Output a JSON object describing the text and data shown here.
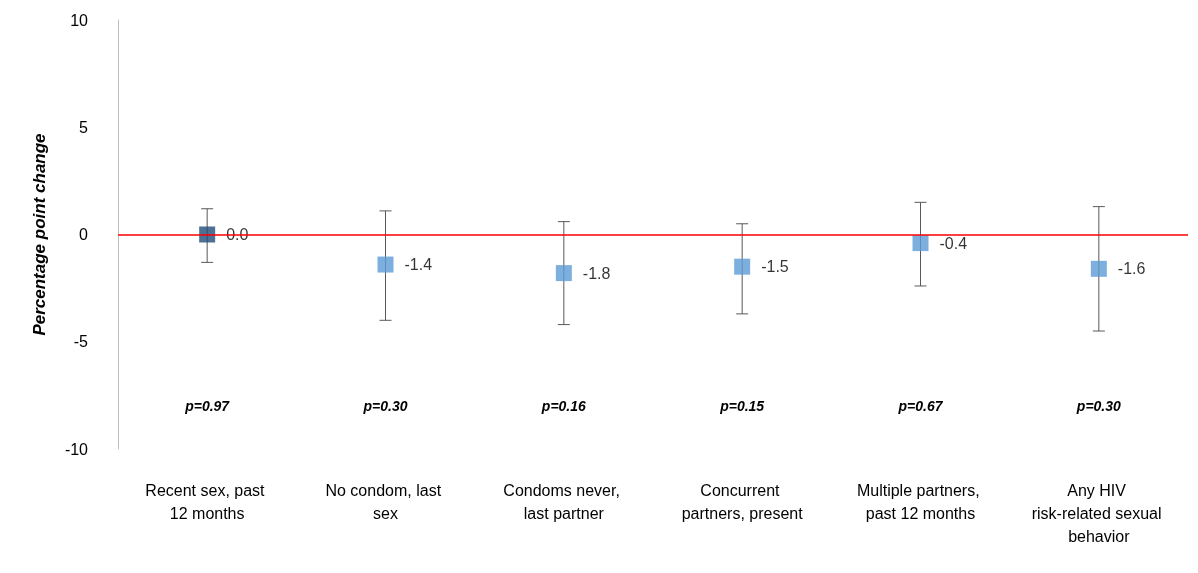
{
  "chart_data": {
    "type": "scatter",
    "ylabel": "Percentage point change",
    "categories": [
      "Recent sex, past 12 months",
      "No condom, last sex",
      "Condoms never, last partner",
      "Concurrent partners, present",
      "Multiple partners, past 12 months",
      "Any HIV risk-related sexual behavior"
    ],
    "values": [
      0.0,
      -1.4,
      -1.8,
      -1.5,
      -0.4,
      -1.6
    ],
    "colors": [
      "#1f4e79",
      "#5b9bd5",
      "#5b9bd5",
      "#5b9bd5",
      "#5b9bd5",
      "#5b9bd5"
    ],
    "errors": [
      [
        -1.3,
        1.2
      ],
      [
        -4.0,
        1.1
      ],
      [
        -4.2,
        0.6
      ],
      [
        -3.7,
        0.5
      ],
      [
        -2.4,
        1.5
      ],
      [
        -4.5,
        1.3
      ]
    ],
    "value_labels": [
      "0.0",
      "-1.4",
      "-1.8",
      "-1.5",
      "-0.4",
      "-1.6"
    ],
    "marker": "square",
    "ylim": [
      -10,
      10
    ],
    "yticks": [
      -10,
      -5,
      0,
      5,
      10
    ],
    "grid": false,
    "ref_lines": [
      {
        "axis": "y",
        "value": 0,
        "color": "#ff0000"
      }
    ],
    "annotations": [
      "p=0.97",
      "p=0.30",
      "p=0.16",
      "p=0.15",
      "p=0.67",
      "p=0.30"
    ]
  }
}
